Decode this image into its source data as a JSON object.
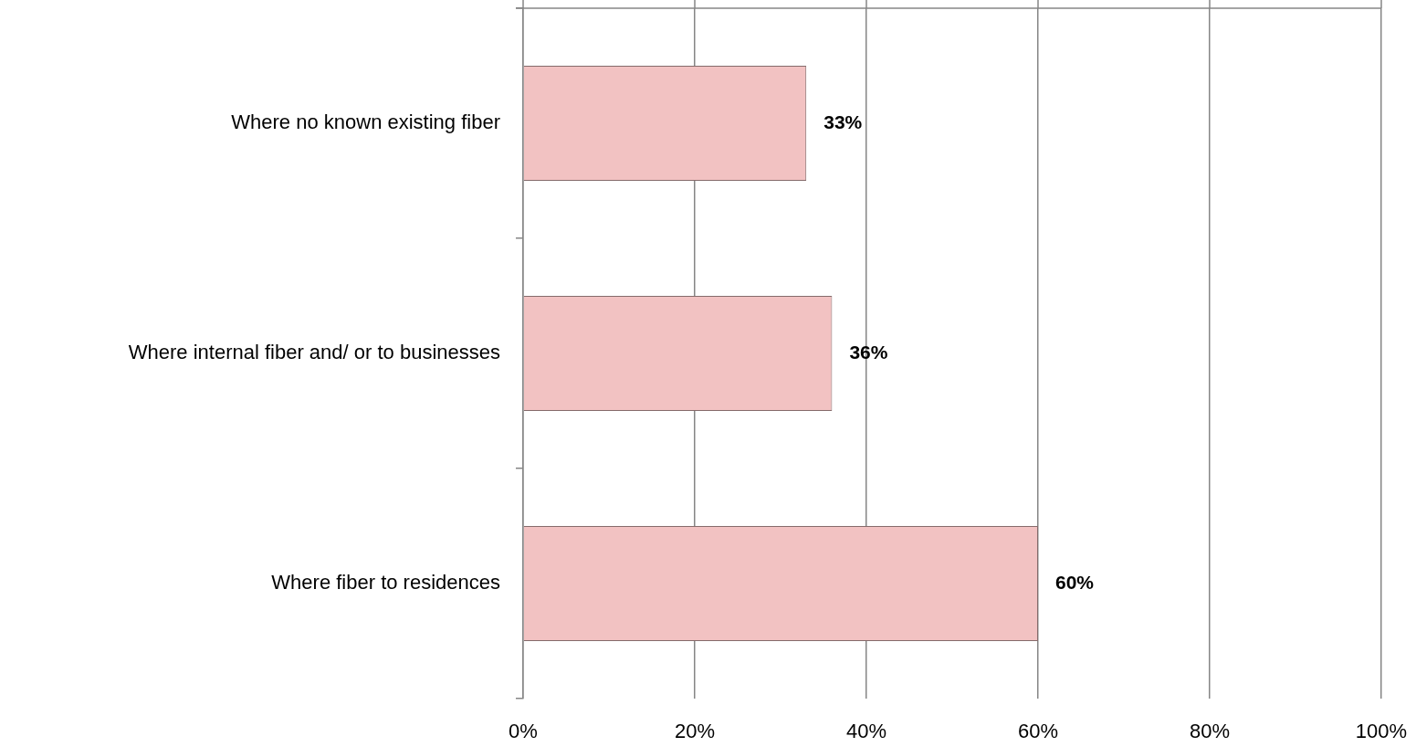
{
  "chart_data": {
    "type": "bar",
    "orientation": "horizontal",
    "categories": [
      "Where no known existing fiber",
      "Where internal fiber and/ or to businesses",
      "Where fiber to residences"
    ],
    "values": [
      33,
      36,
      60
    ],
    "color": "#f2c2c2",
    "value_labels": [
      "33%",
      "36%",
      "60%"
    ],
    "xlim": [
      0,
      100
    ],
    "xticks": [
      {
        "value": 0,
        "label": "0%"
      },
      {
        "value": 20,
        "label": "20%"
      },
      {
        "value": 40,
        "label": "40%"
      },
      {
        "value": 60,
        "label": "60%"
      },
      {
        "value": 80,
        "label": "80%"
      },
      {
        "value": 100,
        "label": "100%"
      }
    ],
    "grid": "x",
    "legend": false
  }
}
